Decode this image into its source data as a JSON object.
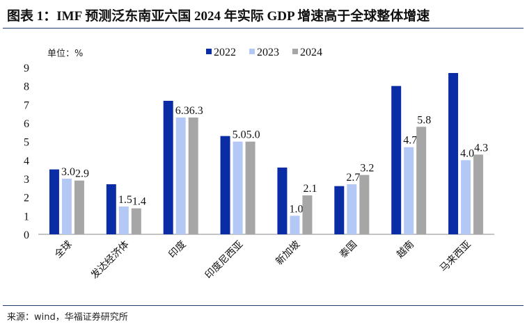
{
  "title": "图表 1：IMF 预测泛东南亚六国 2024 年实际 GDP 增速高于全球整体增速",
  "source": "来源：wind，华福证券研究所",
  "chart_data": {
    "type": "bar",
    "unit_label": "单位：%",
    "categories": [
      "全球",
      "发达经济体",
      "印度",
      "印度尼西亚",
      "新加坡",
      "泰国",
      "越南",
      "马来西亚"
    ],
    "series": [
      {
        "name": "2022",
        "color": "#0A2DA5",
        "values": [
          3.5,
          2.7,
          7.2,
          5.3,
          3.6,
          2.6,
          8.0,
          8.7
        ],
        "labeled": false
      },
      {
        "name": "2023",
        "color": "#B4C8F5",
        "values": [
          3.0,
          1.5,
          6.3,
          5.0,
          1.0,
          2.7,
          4.7,
          4.0
        ],
        "labeled": true
      },
      {
        "name": "2024",
        "color": "#A6A6A6",
        "values": [
          2.9,
          1.4,
          6.3,
          5.0,
          2.1,
          3.2,
          5.8,
          4.3
        ],
        "labeled": true
      }
    ],
    "ylim": [
      0,
      9
    ],
    "yticks": [
      0,
      1,
      2,
      3,
      4,
      5,
      6,
      7,
      8,
      9
    ],
    "legend": "top-center",
    "grid": false
  }
}
